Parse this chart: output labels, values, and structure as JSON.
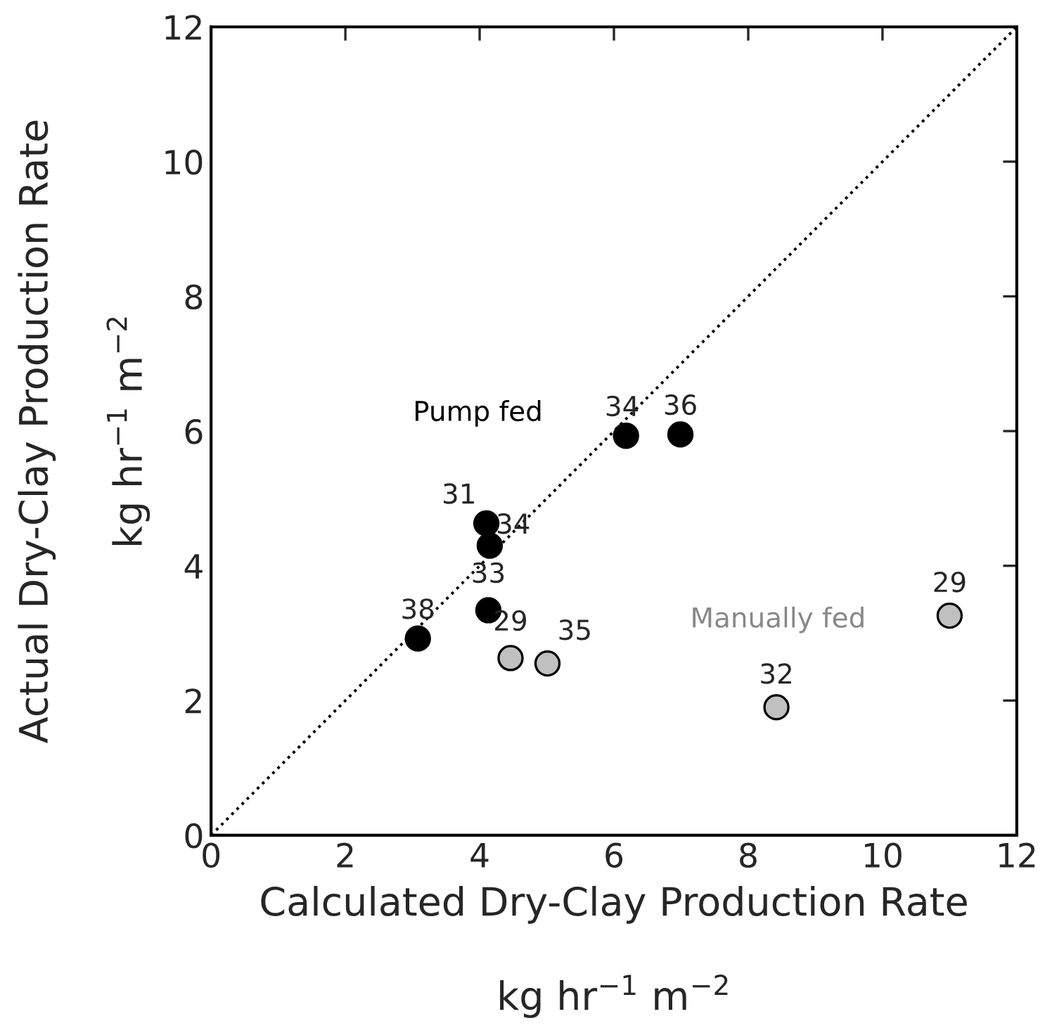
{
  "chart_data": {
    "type": "scatter",
    "xlabel": "Calculated Dry-Clay Production Rate\n\nkg hr$^{−1}$ m$^{−2}$",
    "ylabel": "Actual Dry-Clay Production Rate\n\nkg hr$^{−1}$ m$^{−2}$",
    "xlim": [
      0,
      12
    ],
    "ylim": [
      0,
      12
    ],
    "xticks": [
      0,
      2,
      4,
      6,
      8,
      10,
      12
    ],
    "yticks": [
      0,
      2,
      4,
      6,
      8,
      10,
      12
    ],
    "grid": false,
    "legend": false,
    "marker": "circle",
    "series": [
      {
        "name": "Pump fed",
        "color": "#000000",
        "x": [
          3.08,
          4.1,
          4.15,
          4.13,
          6.18,
          6.99
        ],
        "values": [
          2.92,
          4.63,
          4.3,
          3.34,
          5.93,
          5.95
        ]
      },
      {
        "name": "Manually fed",
        "color": "#c0c0c0",
        "x": [
          4.46,
          5.01,
          8.42,
          11.0
        ],
        "values": [
          2.63,
          2.55,
          1.9,
          3.26
        ]
      },
      {
        "type": "line",
        "color": "#000000",
        "line_style": "dotted",
        "marker": "none",
        "x": [
          0,
          12
        ],
        "values": [
          0,
          12
        ]
      }
    ],
    "annotations": [
      {
        "text": "38",
        "x": 3.08,
        "y": 2.92
      },
      {
        "text": "31",
        "x": 4.1,
        "y": 4.63
      },
      {
        "text": "34",
        "x": 4.15,
        "y": 4.3
      },
      {
        "text": "33",
        "x": 4.13,
        "y": 3.34
      },
      {
        "text": "34",
        "x": 6.18,
        "y": 5.93
      },
      {
        "text": "36",
        "x": 6.99,
        "y": 5.95
      },
      {
        "text": "29",
        "x": 4.46,
        "y": 2.63
      },
      {
        "text": "35",
        "x": 5.01,
        "y": 2.55
      },
      {
        "text": "32",
        "x": 8.42,
        "y": 1.9
      },
      {
        "text": "29",
        "x": 11.0,
        "y": 3.26
      }
    ]
  }
}
